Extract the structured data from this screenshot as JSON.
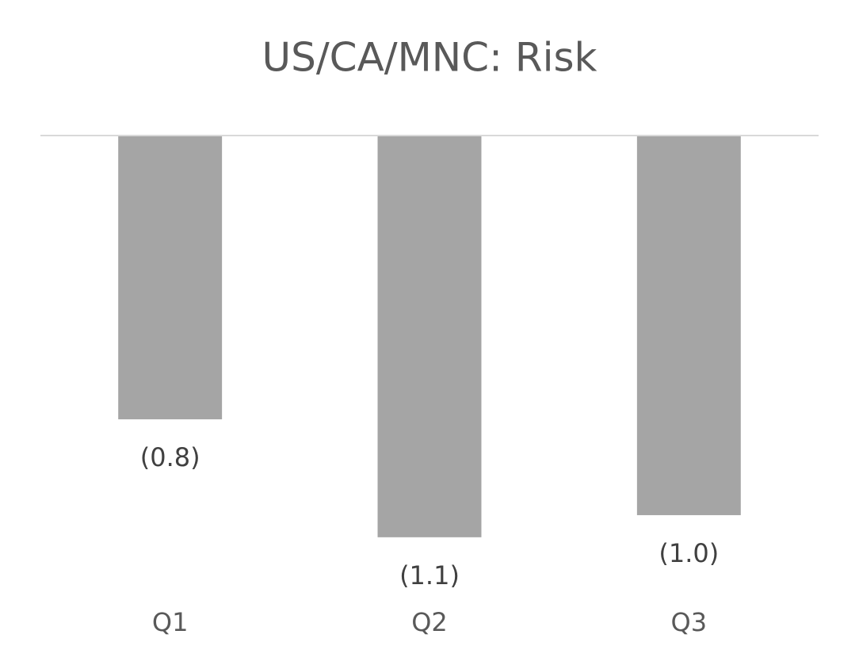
{
  "chart_data": {
    "type": "bar",
    "title": "US/CA/MNC: Risk",
    "categories": [
      "Q1",
      "Q2",
      "Q3"
    ],
    "values": [
      -0.77,
      -1.09,
      -1.03
    ],
    "value_labels": [
      "(0.8)",
      "(1.1)",
      "(1.0)"
    ],
    "color": "#a5a5a5",
    "ylim": [
      -1.2,
      0
    ]
  }
}
